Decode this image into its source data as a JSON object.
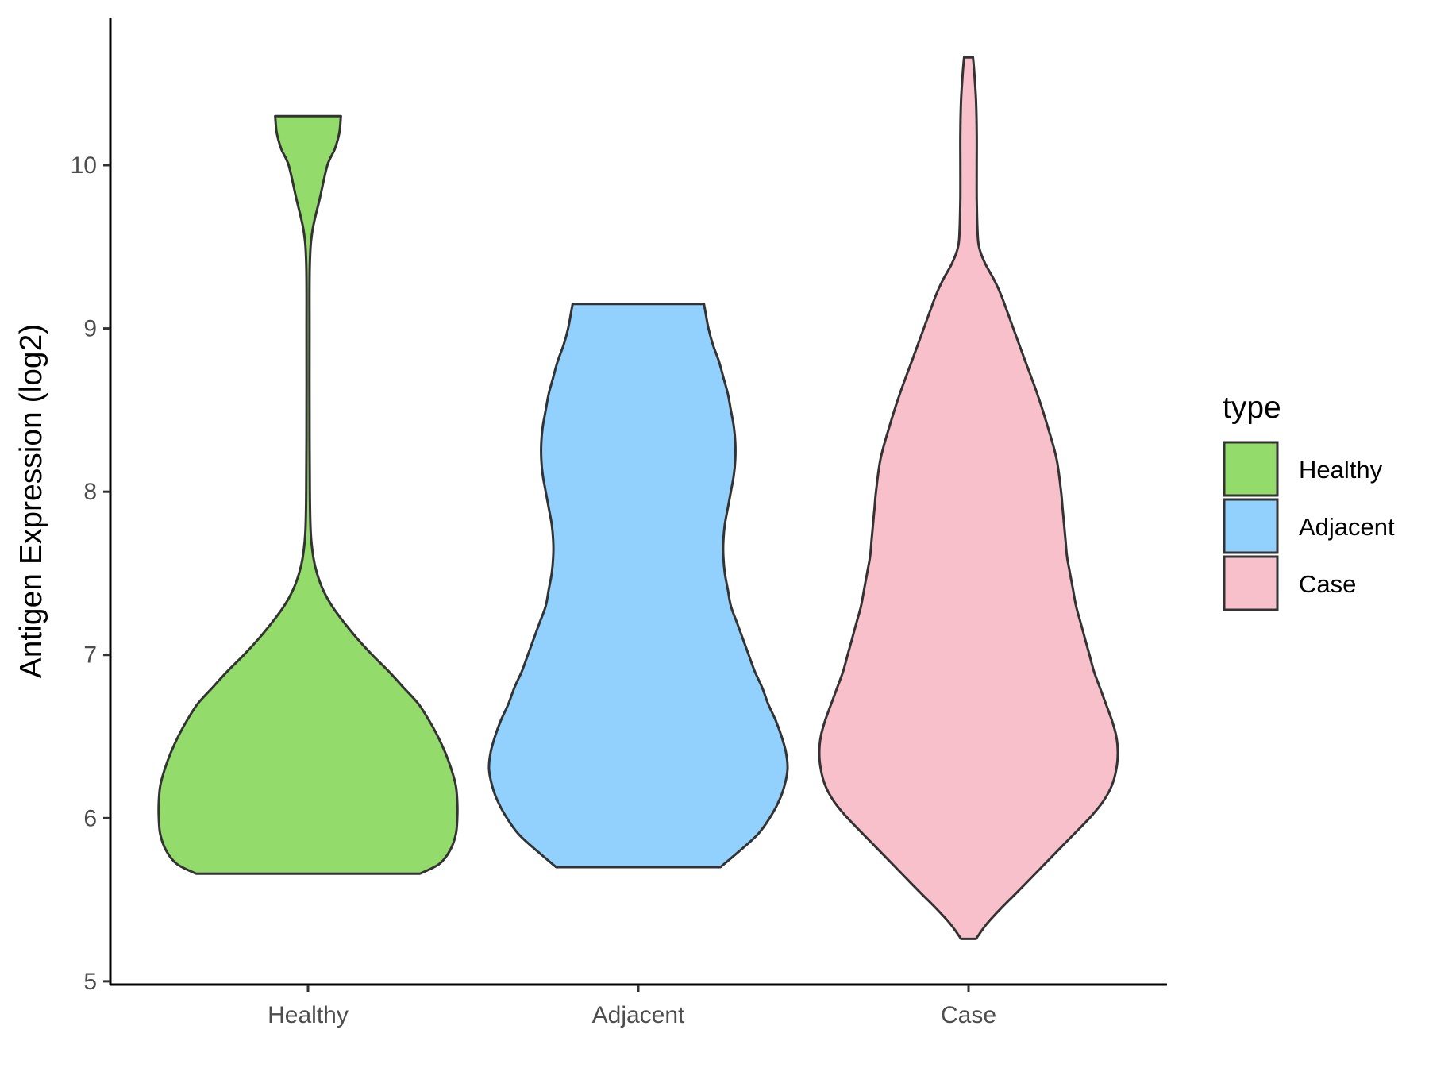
{
  "chart_data": {
    "type": "violin",
    "xlabel": "",
    "ylabel": "Antigen Expression (log2)",
    "ylim": [
      4.98,
      10.9
    ],
    "y_ticks": [
      5,
      6,
      7,
      8,
      9,
      10
    ],
    "categories": [
      "Healthy",
      "Adjacent",
      "Case"
    ],
    "legend": {
      "title": "type",
      "position": "right",
      "entries": [
        "Healthy",
        "Adjacent",
        "Case"
      ]
    },
    "grid": false,
    "series": [
      {
        "name": "Healthy",
        "color": "#93DB6A",
        "min": 5.66,
        "max": 10.3,
        "profile": [
          [
            5.66,
            0.75
          ],
          [
            5.72,
            0.88
          ],
          [
            5.8,
            0.95
          ],
          [
            5.9,
            0.99
          ],
          [
            6.0,
            1.0
          ],
          [
            6.1,
            1.0
          ],
          [
            6.2,
            0.99
          ],
          [
            6.3,
            0.96
          ],
          [
            6.4,
            0.92
          ],
          [
            6.5,
            0.87
          ],
          [
            6.6,
            0.81
          ],
          [
            6.7,
            0.74
          ],
          [
            6.8,
            0.64
          ],
          [
            6.9,
            0.54
          ],
          [
            7.0,
            0.43
          ],
          [
            7.1,
            0.33
          ],
          [
            7.2,
            0.24
          ],
          [
            7.3,
            0.16
          ],
          [
            7.4,
            0.1
          ],
          [
            7.5,
            0.06
          ],
          [
            7.6,
            0.035
          ],
          [
            7.75,
            0.018
          ],
          [
            8.0,
            0.012
          ],
          [
            8.5,
            0.01
          ],
          [
            9.0,
            0.01
          ],
          [
            9.4,
            0.012
          ],
          [
            9.6,
            0.03
          ],
          [
            9.8,
            0.08
          ],
          [
            10.0,
            0.13
          ],
          [
            10.1,
            0.18
          ],
          [
            10.2,
            0.21
          ],
          [
            10.3,
            0.22
          ]
        ]
      },
      {
        "name": "Adjacent",
        "color": "#92D1FD",
        "min": 5.7,
        "max": 9.15,
        "profile": [
          [
            5.7,
            0.55
          ],
          [
            5.8,
            0.68
          ],
          [
            5.9,
            0.8
          ],
          [
            6.0,
            0.88
          ],
          [
            6.1,
            0.94
          ],
          [
            6.2,
            0.98
          ],
          [
            6.3,
            1.0
          ],
          [
            6.4,
            0.99
          ],
          [
            6.5,
            0.96
          ],
          [
            6.6,
            0.92
          ],
          [
            6.7,
            0.87
          ],
          [
            6.8,
            0.83
          ],
          [
            6.9,
            0.78
          ],
          [
            7.0,
            0.74
          ],
          [
            7.1,
            0.7
          ],
          [
            7.2,
            0.66
          ],
          [
            7.3,
            0.62
          ],
          [
            7.4,
            0.6
          ],
          [
            7.5,
            0.58
          ],
          [
            7.6,
            0.57
          ],
          [
            7.7,
            0.57
          ],
          [
            7.8,
            0.58
          ],
          [
            7.9,
            0.6
          ],
          [
            8.0,
            0.62
          ],
          [
            8.1,
            0.64
          ],
          [
            8.2,
            0.65
          ],
          [
            8.3,
            0.65
          ],
          [
            8.4,
            0.64
          ],
          [
            8.5,
            0.62
          ],
          [
            8.6,
            0.6
          ],
          [
            8.7,
            0.57
          ],
          [
            8.8,
            0.54
          ],
          [
            8.9,
            0.5
          ],
          [
            9.0,
            0.47
          ],
          [
            9.1,
            0.45
          ],
          [
            9.15,
            0.44
          ]
        ]
      },
      {
        "name": "Case",
        "color": "#F7C0CB",
        "min": 5.26,
        "max": 10.66,
        "profile": [
          [
            5.26,
            0.05
          ],
          [
            5.35,
            0.12
          ],
          [
            5.45,
            0.22
          ],
          [
            5.55,
            0.33
          ],
          [
            5.7,
            0.49
          ],
          [
            5.85,
            0.65
          ],
          [
            6.0,
            0.81
          ],
          [
            6.1,
            0.9
          ],
          [
            6.2,
            0.96
          ],
          [
            6.3,
            0.99
          ],
          [
            6.4,
            1.0
          ],
          [
            6.5,
            0.99
          ],
          [
            6.6,
            0.96
          ],
          [
            6.7,
            0.92
          ],
          [
            6.8,
            0.88
          ],
          [
            6.9,
            0.84
          ],
          [
            7.0,
            0.81
          ],
          [
            7.1,
            0.78
          ],
          [
            7.2,
            0.75
          ],
          [
            7.3,
            0.72
          ],
          [
            7.4,
            0.7
          ],
          [
            7.5,
            0.68
          ],
          [
            7.6,
            0.66
          ],
          [
            7.7,
            0.65
          ],
          [
            7.8,
            0.64
          ],
          [
            7.9,
            0.63
          ],
          [
            8.0,
            0.62
          ],
          [
            8.2,
            0.59
          ],
          [
            8.4,
            0.53
          ],
          [
            8.6,
            0.46
          ],
          [
            8.8,
            0.38
          ],
          [
            9.0,
            0.3
          ],
          [
            9.2,
            0.22
          ],
          [
            9.3,
            0.17
          ],
          [
            9.4,
            0.11
          ],
          [
            9.5,
            0.07
          ],
          [
            9.6,
            0.06
          ],
          [
            9.8,
            0.055
          ],
          [
            10.0,
            0.055
          ],
          [
            10.2,
            0.055
          ],
          [
            10.4,
            0.05
          ],
          [
            10.55,
            0.04
          ],
          [
            10.66,
            0.03
          ]
        ]
      }
    ]
  }
}
